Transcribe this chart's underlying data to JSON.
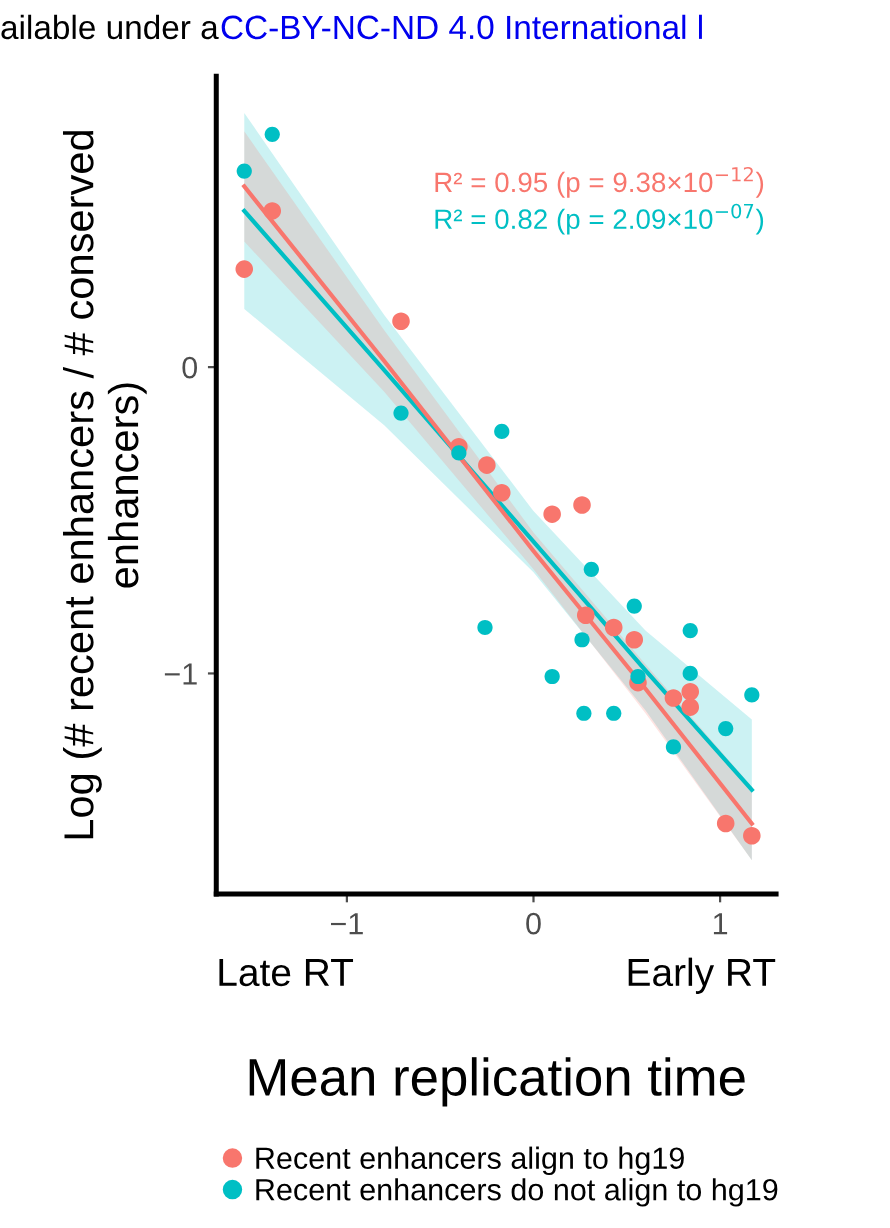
{
  "chart_data": {
    "type": "scatter",
    "xlabel": "Mean replication time",
    "ylabel": "Log (# recent enhancers / # conserved\nenhancers)",
    "annotations": [
      "ailable under a",
      "CC-BY-NC-ND 4.0 International l",
      "R² = 0.95 (p = 9.38×10$^{−12}$)",
      "R² = 0.82 (p = 2.09×10$^{−07}$)",
      "Late RT",
      "Early RT"
    ],
    "xlim": [
      -1.7,
      1.3
    ],
    "ylim": [
      -1.72,
      0.95
    ],
    "xticks": [
      {
        "value": -1,
        "label": "−1"
      },
      0,
      1
    ],
    "yticks": [
      {
        "value": -1,
        "label": "−1"
      },
      0
    ],
    "grid": false,
    "legend": "bottom",
    "marker": "circle",
    "series": [
      {
        "name": "Recent enhancers align to hg19",
        "color": "#f8766d",
        "x": [
          -1.55,
          -1.4,
          -0.71,
          -0.4,
          -0.25,
          -0.17,
          0.1,
          0.26,
          0.28,
          0.43,
          0.54,
          0.56,
          0.75,
          0.84,
          0.84,
          1.03,
          1.17
        ],
        "values": [
          0.32,
          0.51,
          0.15,
          -0.26,
          -0.32,
          -0.41,
          -0.48,
          -0.45,
          -0.81,
          -0.85,
          -0.89,
          -1.03,
          -1.08,
          -1.06,
          -1.11,
          -1.49,
          -1.53
        ]
      },
      {
        "name": "Recent enhancers do not align to hg19",
        "color": "#00bfc4",
        "x": [
          -1.4,
          -1.55,
          -0.71,
          -0.17,
          -0.4,
          0.31,
          0.54,
          -0.26,
          0.26,
          0.84,
          0.84,
          0.1,
          0.56,
          1.17,
          0.27,
          0.43,
          1.03,
          0.75
        ],
        "values": [
          0.76,
          0.64,
          -0.15,
          -0.21,
          -0.28,
          -0.66,
          -0.78,
          -0.85,
          -0.89,
          -0.86,
          -1.0,
          -1.01,
          -1.01,
          -1.07,
          -1.13,
          -1.13,
          -1.18,
          -1.24
        ]
      },
      {
        "type": "line",
        "marker": "none",
        "color": "#00bfc4",
        "x": [
          -1.55,
          -0.8,
          0,
          0.6,
          1.17
        ],
        "values": [
          0.51,
          -0.01,
          -0.57,
          -0.99,
          -1.38
        ],
        "lower": [
          0.19,
          -0.19,
          -0.67,
          -1.12,
          -1.61
        ],
        "upper": [
          0.83,
          0.17,
          -0.47,
          -0.86,
          -1.15
        ]
      },
      {
        "type": "line",
        "marker": "none",
        "color": "#f8766d",
        "x": [
          -1.55,
          -0.8,
          0,
          0.6,
          1.17
        ],
        "values": [
          0.59,
          0.02,
          -0.6,
          -1.05,
          -1.49
        ],
        "lower": [
          0.41,
          -0.08,
          -0.66,
          -1.13,
          -1.61
        ],
        "upper": [
          0.77,
          0.12,
          -0.54,
          -0.97,
          -1.37
        ]
      }
    ]
  }
}
